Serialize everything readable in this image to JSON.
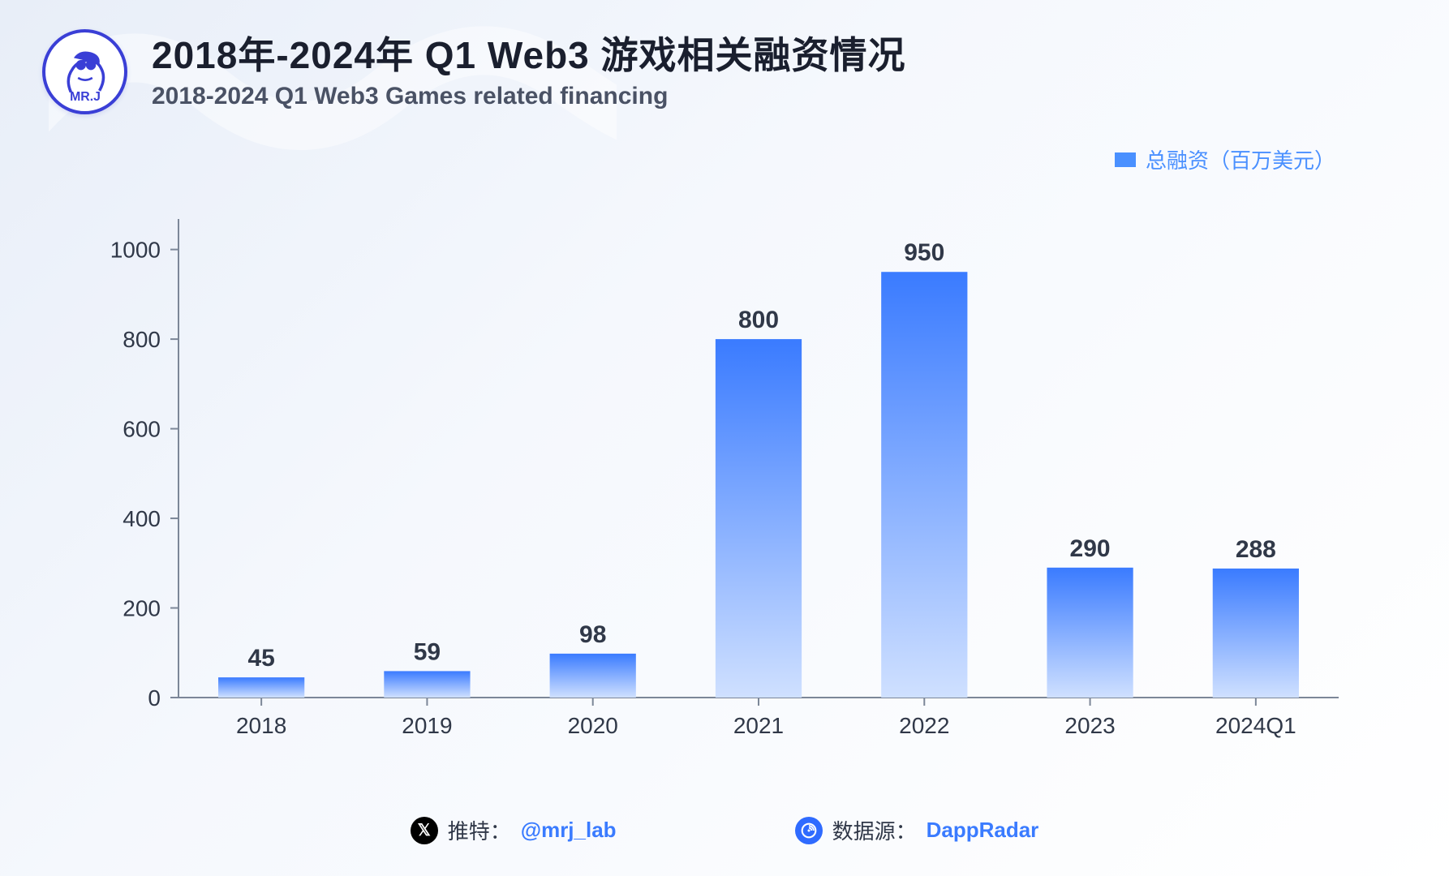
{
  "header": {
    "title_main": "2018年-2024年 Q1 Web3 游戏相关融资情况",
    "title_sub": "2018-2024 Q1 Web3 Games related financing",
    "logo_text": "MR.J"
  },
  "legend": {
    "label": "总融资（百万美元）",
    "swatch_color": "#4a90ff"
  },
  "chart": {
    "type": "bar",
    "categories": [
      "2018",
      "2019",
      "2020",
      "2021",
      "2022",
      "2023",
      "2024Q1"
    ],
    "values": [
      45,
      59,
      98,
      800,
      950,
      290,
      288
    ],
    "xlim": [
      0,
      7
    ],
    "ylim": [
      0,
      1050
    ],
    "ytick_step": 200,
    "yticks": [
      0,
      200,
      400,
      600,
      800,
      1000
    ],
    "bar_gradient_top": "#3a7bff",
    "bar_gradient_bottom": "#cfe0ff",
    "bar_width_ratio": 0.52,
    "axis_color": "#7c8798",
    "tick_len": 10,
    "label_color": "#303848",
    "label_fontsize": 28,
    "value_label_fontsize": 30,
    "value_label_weight": 600,
    "background": "transparent"
  },
  "footer": {
    "twitter_label": "推特：",
    "twitter_handle": "@mrj_lab",
    "source_label": "数据源：",
    "source_name": "DappRadar"
  }
}
